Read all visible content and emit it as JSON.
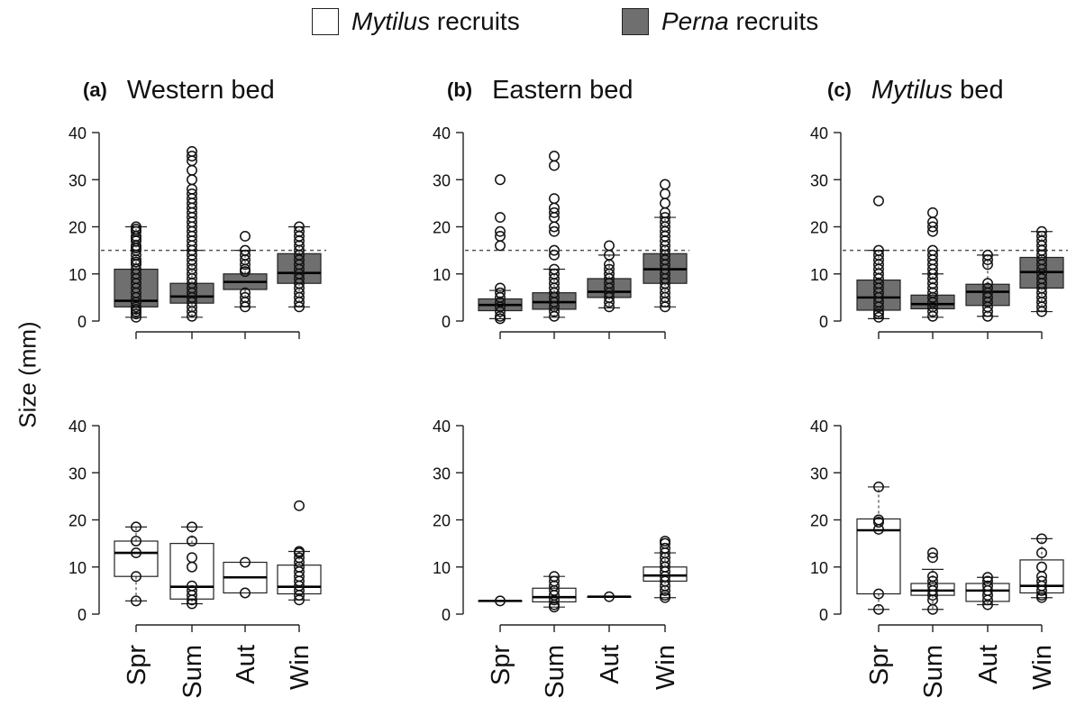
{
  "legend": {
    "items": [
      {
        "genus": "Mytilus",
        "suffix": " recruits",
        "fill": "#ffffff"
      },
      {
        "genus": "Perna",
        "suffix": " recruits",
        "fill": "#6f6f6f"
      }
    ]
  },
  "ylabel": "Size (mm)",
  "colors": {
    "perna": "#6f6f6f",
    "mytilus": "#ffffff",
    "stroke": "#222222",
    "reference": "#555555"
  },
  "panel_titles": [
    {
      "tag": "(a)",
      "title": "Western bed"
    },
    {
      "tag": "(b)",
      "title": "Eastern bed"
    },
    {
      "tag": "(c)",
      "genus": "Mytilus",
      "rest": " bed"
    }
  ],
  "chart_data": [
    {
      "type": "boxplot",
      "panel": "(a)",
      "title": "Western bed",
      "row": "Perna recruits",
      "categories": [
        "Spr",
        "Sum",
        "Aut",
        "Win"
      ],
      "ylabel": "Size (mm)",
      "ylim": [
        0,
        40
      ],
      "yticks": [
        0,
        10,
        20,
        30,
        40
      ],
      "reference_line": 15,
      "boxes": [
        {
          "cat": "Spr",
          "q1": 3,
          "median": 4.3,
          "q3": 11,
          "lo": 0.8,
          "hi": 20,
          "outliers": [
            0.8,
            1.5,
            2,
            2.5,
            3,
            4,
            5,
            6,
            7,
            8,
            9,
            10,
            11,
            12,
            12.5,
            13,
            14,
            15,
            15.5,
            16,
            17,
            17.5,
            18,
            19,
            19.5,
            20
          ]
        },
        {
          "cat": "Sum",
          "q1": 3.8,
          "median": 5.2,
          "q3": 8,
          "lo": 0.8,
          "hi": 15,
          "outliers": [
            1,
            2,
            3,
            4,
            5,
            6,
            7,
            8,
            9,
            10,
            11,
            12,
            13,
            14,
            15,
            16,
            17,
            18,
            19,
            20,
            21,
            22,
            23,
            24,
            25,
            26,
            27,
            28,
            30,
            32,
            34,
            35,
            36
          ]
        },
        {
          "cat": "Aut",
          "q1": 6.7,
          "median": 8.3,
          "q3": 10,
          "lo": 3,
          "hi": 15,
          "outliers": [
            3,
            4,
            5,
            6,
            10.5,
            11,
            12,
            13,
            14,
            15,
            18
          ]
        },
        {
          "cat": "Win",
          "q1": 8,
          "median": 10.2,
          "q3": 14.3,
          "lo": 3,
          "hi": 20,
          "outliers": [
            3,
            4,
            5,
            6,
            7,
            8,
            9,
            10,
            11,
            12,
            13,
            14,
            15,
            16,
            17,
            18,
            19,
            20
          ]
        }
      ]
    },
    {
      "type": "boxplot",
      "panel": "(b)",
      "title": "Eastern bed",
      "row": "Perna recruits",
      "categories": [
        "Spr",
        "Sum",
        "Aut",
        "Win"
      ],
      "ylabel": "Size (mm)",
      "ylim": [
        0,
        40
      ],
      "yticks": [
        0,
        10,
        20,
        30,
        40
      ],
      "reference_line": 15,
      "boxes": [
        {
          "cat": "Spr",
          "q1": 2.2,
          "median": 3.4,
          "q3": 4.7,
          "lo": 0.5,
          "hi": 6.5,
          "outliers": [
            0.5,
            1,
            2,
            3,
            4,
            5,
            6,
            7,
            16,
            18,
            19,
            22,
            30
          ]
        },
        {
          "cat": "Sum",
          "q1": 2.5,
          "median": 4,
          "q3": 6,
          "lo": 0.8,
          "hi": 11,
          "outliers": [
            1,
            2,
            3,
            4,
            5,
            6,
            7,
            8,
            9,
            10,
            11,
            14,
            15,
            19,
            20,
            22,
            23,
            24,
            26,
            33,
            35
          ]
        },
        {
          "cat": "Aut",
          "q1": 5,
          "median": 6.2,
          "q3": 9,
          "lo": 2.8,
          "hi": 14,
          "outliers": [
            3,
            4,
            5,
            6,
            7,
            8,
            9,
            10,
            11,
            12,
            14,
            16
          ]
        },
        {
          "cat": "Win",
          "q1": 8,
          "median": 11,
          "q3": 14.3,
          "lo": 3,
          "hi": 22,
          "outliers": [
            3,
            4,
            5,
            6,
            7,
            8,
            9,
            10,
            11,
            12,
            13,
            14,
            15,
            16,
            17,
            18,
            19,
            20,
            21,
            22,
            23,
            25,
            27,
            29
          ]
        }
      ]
    },
    {
      "type": "boxplot",
      "panel": "(c)",
      "title": "Mytilus bed",
      "row": "Perna recruits",
      "categories": [
        "Spr",
        "Sum",
        "Aut",
        "Win"
      ],
      "ylabel": "Size (mm)",
      "ylim": [
        0,
        40
      ],
      "yticks": [
        0,
        10,
        20,
        30,
        40
      ],
      "reference_line": 15,
      "boxes": [
        {
          "cat": "Spr",
          "q1": 2.3,
          "median": 5,
          "q3": 8.7,
          "lo": 0.5,
          "hi": 15,
          "outliers": [
            0.8,
            1.5,
            2,
            3,
            4,
            5,
            6,
            7,
            8,
            9,
            10,
            11,
            12,
            13,
            14,
            15,
            25.5
          ]
        },
        {
          "cat": "Sum",
          "q1": 2.6,
          "median": 3.6,
          "q3": 5.5,
          "lo": 0.8,
          "hi": 10,
          "outliers": [
            1,
            2,
            3,
            4,
            5,
            6,
            7,
            8,
            9,
            10,
            11,
            12,
            13,
            14,
            15,
            19,
            20,
            21,
            23
          ]
        },
        {
          "cat": "Aut",
          "q1": 3.3,
          "median": 6.2,
          "q3": 7.8,
          "lo": 1,
          "hi": 14,
          "outliers": [
            1,
            2,
            3,
            4,
            5,
            6,
            7,
            8,
            12,
            13,
            14
          ]
        },
        {
          "cat": "Win",
          "q1": 7,
          "median": 10.4,
          "q3": 13.5,
          "lo": 2,
          "hi": 19,
          "outliers": [
            2,
            3,
            4,
            5,
            6,
            7,
            8,
            9,
            10,
            11,
            12,
            13,
            14,
            15,
            16,
            17,
            18,
            19
          ]
        }
      ]
    },
    {
      "type": "boxplot",
      "panel": "(a)",
      "title": "Western bed",
      "row": "Mytilus recruits",
      "categories": [
        "Spr",
        "Sum",
        "Aut",
        "Win"
      ],
      "ylabel": "Size (mm)",
      "ylim": [
        0,
        40
      ],
      "yticks": [
        0,
        10,
        20,
        30,
        40
      ],
      "boxes": [
        {
          "cat": "Spr",
          "q1": 8,
          "median": 13,
          "q3": 15.5,
          "lo": 2.8,
          "hi": 18.5,
          "outliers": [
            2.8,
            8,
            13,
            15.5,
            18.5
          ]
        },
        {
          "cat": "Sum",
          "q1": 3.2,
          "median": 5.8,
          "q3": 15,
          "lo": 2.2,
          "hi": 18.5,
          "outliers": [
            2.2,
            3,
            4,
            5,
            6,
            10,
            12,
            15.5,
            18.5
          ]
        },
        {
          "cat": "Aut",
          "q1": 4.5,
          "median": 7.8,
          "q3": 11,
          "lo": 4.5,
          "hi": 11,
          "outliers": [
            4.5,
            11
          ]
        },
        {
          "cat": "Win",
          "q1": 4.3,
          "median": 5.8,
          "q3": 10.4,
          "lo": 3,
          "hi": 13.3,
          "outliers": [
            3,
            4,
            5,
            6,
            7,
            8,
            9,
            10,
            11,
            12,
            13,
            13.3,
            23
          ]
        }
      ]
    },
    {
      "type": "boxplot",
      "panel": "(b)",
      "title": "Eastern bed",
      "row": "Mytilus recruits",
      "categories": [
        "Spr",
        "Sum",
        "Aut",
        "Win"
      ],
      "ylabel": "Size (mm)",
      "ylim": [
        0,
        40
      ],
      "yticks": [
        0,
        10,
        20,
        30,
        40
      ],
      "boxes": [
        {
          "cat": "Spr",
          "q1": 2.8,
          "median": 2.8,
          "q3": 2.8,
          "lo": 2.8,
          "hi": 2.8,
          "outliers": [
            2.8
          ]
        },
        {
          "cat": "Sum",
          "q1": 2.6,
          "median": 3.6,
          "q3": 5.5,
          "lo": 1.5,
          "hi": 8,
          "outliers": [
            1.5,
            2,
            3,
            4,
            5,
            6,
            7,
            8
          ]
        },
        {
          "cat": "Aut",
          "q1": 3.7,
          "median": 3.7,
          "q3": 3.7,
          "lo": 3.7,
          "hi": 3.7,
          "outliers": [
            3.7
          ]
        },
        {
          "cat": "Win",
          "q1": 7,
          "median": 8.2,
          "q3": 10,
          "lo": 3.5,
          "hi": 13,
          "outliers": [
            3.5,
            4,
            5,
            6,
            7,
            8,
            9,
            10,
            11,
            12,
            13,
            14,
            15,
            15.5
          ]
        }
      ]
    },
    {
      "type": "boxplot",
      "panel": "(c)",
      "title": "Mytilus bed",
      "row": "Mytilus recruits",
      "categories": [
        "Spr",
        "Sum",
        "Aut",
        "Win"
      ],
      "ylabel": "Size (mm)",
      "ylim": [
        0,
        40
      ],
      "yticks": [
        0,
        10,
        20,
        30,
        40
      ],
      "boxes": [
        {
          "cat": "Spr",
          "q1": 4.3,
          "median": 17.8,
          "q3": 20.2,
          "lo": 1,
          "hi": 27,
          "outliers": [
            1,
            4.3,
            18,
            19.5,
            20,
            27
          ]
        },
        {
          "cat": "Sum",
          "q1": 4,
          "median": 5,
          "q3": 6.5,
          "lo": 1,
          "hi": 9.5,
          "outliers": [
            1,
            3,
            4,
            5,
            6,
            7,
            8,
            12,
            13
          ]
        },
        {
          "cat": "Aut",
          "q1": 2.7,
          "median": 5,
          "q3": 6.5,
          "lo": 2,
          "hi": 7.8,
          "outliers": [
            2,
            3,
            4,
            5,
            6,
            7,
            7.8
          ]
        },
        {
          "cat": "Win",
          "q1": 4.5,
          "median": 6,
          "q3": 11.5,
          "lo": 3.5,
          "hi": 16,
          "outliers": [
            3.5,
            4,
            5,
            6,
            7,
            8,
            10,
            13,
            16
          ]
        }
      ]
    }
  ]
}
